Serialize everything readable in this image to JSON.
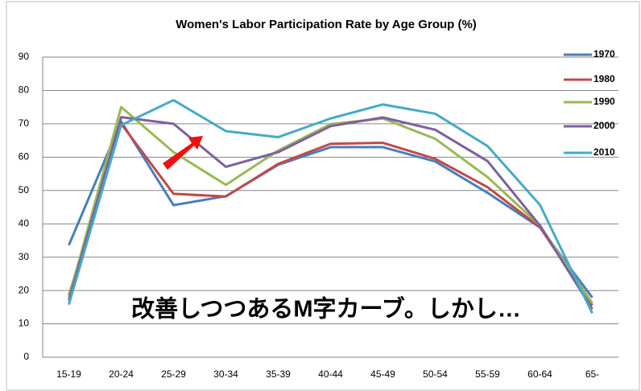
{
  "chart_data": {
    "type": "line",
    "title": "Women's Labor Participation Rate by Age Group (%)",
    "categories": [
      "15-19",
      "20-24",
      "25-29",
      "30-34",
      "35-39",
      "40-44",
      "45-49",
      "50-54",
      "55-59",
      "60-64",
      "65-"
    ],
    "series": [
      {
        "name": "1970",
        "color": "#4a7ebb",
        "values": [
          33.6,
          70.7,
          45.6,
          48.3,
          57.7,
          63.0,
          63.0,
          58.7,
          49.3,
          38.9,
          17.9
        ]
      },
      {
        "name": "1980",
        "color": "#be4b48",
        "values": [
          18.5,
          70.0,
          49.0,
          48.2,
          58.0,
          64.0,
          64.3,
          59.5,
          51.0,
          39.0,
          15.5
        ]
      },
      {
        "name": "1990",
        "color": "#98b954",
        "values": [
          17.8,
          75.0,
          61.5,
          51.7,
          62.0,
          69.9,
          71.6,
          65.5,
          54.0,
          39.5,
          16.2
        ]
      },
      {
        "name": "2000",
        "color": "#7d60a0",
        "values": [
          17.0,
          72.0,
          70.0,
          57.1,
          61.5,
          69.3,
          71.9,
          68.2,
          58.8,
          39.5,
          14.4
        ]
      },
      {
        "name": "2010",
        "color": "#46aac5",
        "values": [
          15.8,
          69.6,
          77.1,
          67.8,
          66.0,
          71.6,
          75.8,
          73.0,
          63.3,
          45.7,
          13.2
        ]
      }
    ],
    "ylim": [
      0,
      90
    ],
    "yticks": [
      0,
      10,
      20,
      30,
      40,
      50,
      60,
      70,
      80,
      90
    ],
    "grid": true,
    "legend": "right",
    "annotation": "改善しつつあるM字カーブ。しかし…"
  }
}
